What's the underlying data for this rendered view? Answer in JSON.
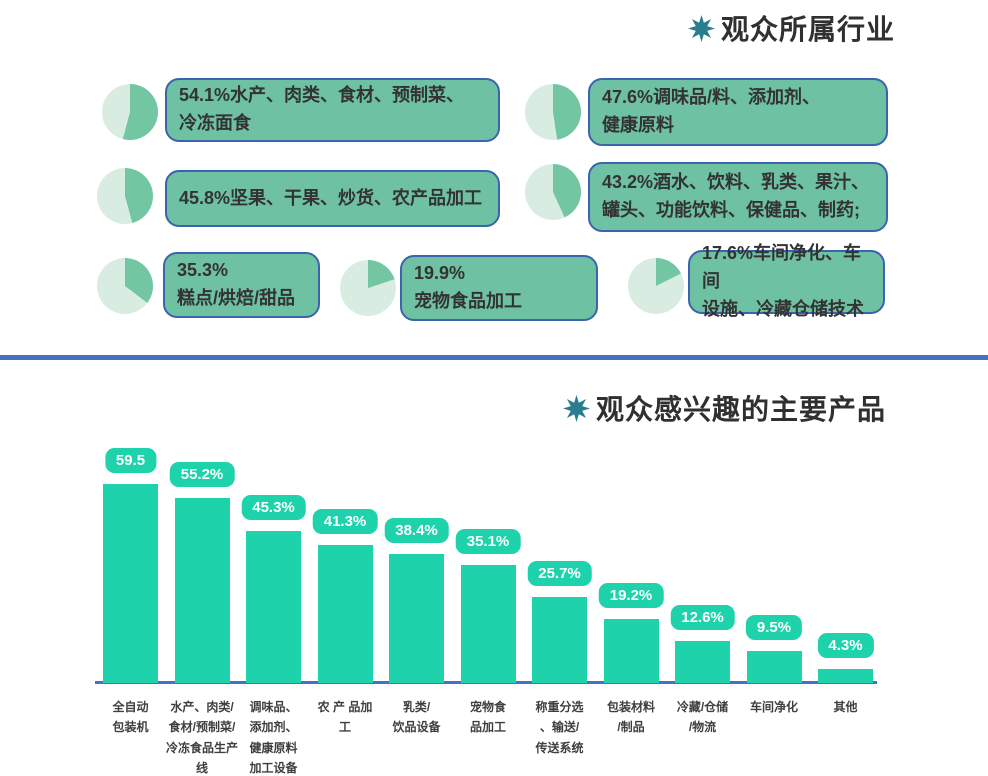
{
  "colors": {
    "box_green": "#6ec1a3",
    "box_border": "#3c63ae",
    "pie_dark": "#72c6a2",
    "pie_light": "#d9ece2",
    "bar_teal": "#1ed3ac",
    "axis_blue": "#4472c4",
    "star_teal": "#2a7d8e",
    "title_text": "#303030",
    "bar_label_text": "#ffffff",
    "category_text": "#3f3f3f"
  },
  "industry": {
    "title": "观众所属行业",
    "items": [
      {
        "pct": 54.1,
        "label": "54.1%水产、肉类、食材、预制菜、\n冷冻面食"
      },
      {
        "pct": 47.6,
        "label": "47.6%调味品/料、添加剂、\n健康原料"
      },
      {
        "pct": 45.8,
        "label": "45.8%坚果、干果、炒货、农产品加工"
      },
      {
        "pct": 43.2,
        "label": "43.2%酒水、饮料、乳类、果汁、\n罐头、功能饮料、保健品、制药;"
      },
      {
        "pct": 35.3,
        "label": "35.3%\n糕点/烘焙/甜品"
      },
      {
        "pct": 19.9,
        "label": "19.9%\n宠物食品加工"
      },
      {
        "pct": 17.6,
        "label": "17.6%车间净化、车间\n设施、冷藏仓储技术"
      }
    ]
  },
  "products": {
    "title": "观众感兴趣的主要产品"
  },
  "chart_data": [
    {
      "type": "pie",
      "title": "观众所属行业",
      "layout": "seven mini pie callout badges, dark slice = percentage, clockwise from 12 o'clock",
      "categories": [
        "水产、肉类、食材、预制菜、冷冻面食",
        "调味品/料、添加剂、健康原料",
        "坚果、干果、炒货、农产品加工",
        "酒水、饮料、乳类、果汁、罐头、功能饮料、保健品、制药",
        "糕点/烘焙/甜品",
        "宠物食品加工",
        "车间净化、车间设施、冷藏仓储技术"
      ],
      "values": [
        54.1,
        47.6,
        45.8,
        43.2,
        35.3,
        19.9,
        17.6
      ]
    },
    {
      "type": "bar",
      "title": "观众感兴趣的主要产品",
      "categories": [
        "全自动包装机",
        "水产、肉类/食材/预制菜/冷冻食品生产线",
        "调味品、添加剂、健康原料加工设备",
        "农 产 品加工",
        "乳类/饮品设备",
        "宠物食品加工",
        "称重分选、输送/传送系统",
        "包装材料/制品",
        "冷藏/仓储/物流",
        "车间净化",
        "其他"
      ],
      "category_display": [
        "全自动\n包装机",
        "水产、肉类/\n食材/预制菜/\n冷冻食品生产\n线",
        "调味品、\n添加剂、\n健康原料\n加工设备",
        "农 产 品加\n工",
        "乳类/\n饮品设备",
        "宠物食\n品加工",
        "称重分选\n、输送/\n传送系统",
        "包装材料\n/制品",
        "冷藏/仓储\n/物流",
        "车间净化",
        "其他"
      ],
      "values": [
        59.5,
        55.2,
        45.3,
        41.3,
        38.4,
        35.1,
        25.7,
        19.2,
        12.6,
        9.5,
        4.3
      ],
      "value_labels": [
        "59.5",
        "55.2%",
        "45.3%",
        "41.3%",
        "38.4%",
        "35.1%",
        "25.7%",
        "19.2%",
        "12.6%",
        "9.5%",
        "4.3%"
      ],
      "xlabel": "",
      "ylabel": "",
      "ylim": [
        0,
        65
      ],
      "grid": false,
      "legend": "none"
    }
  ]
}
